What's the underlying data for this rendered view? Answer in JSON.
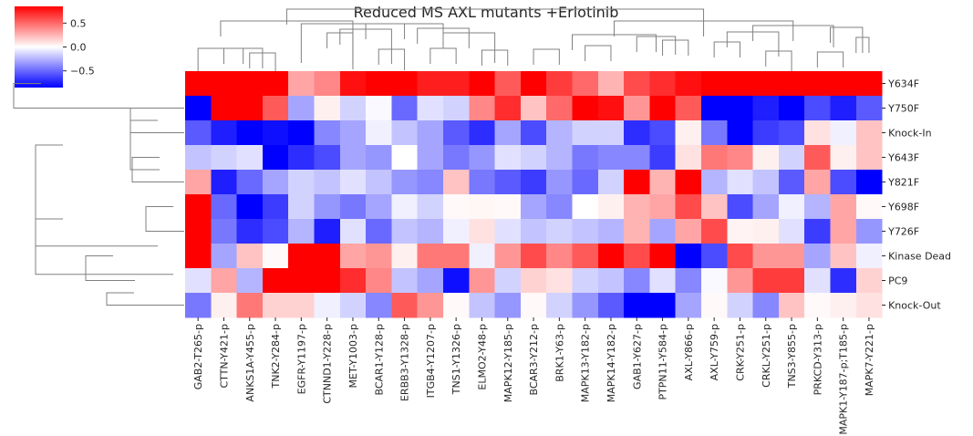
{
  "chart_data": {
    "type": "heatmap",
    "title": "Reduced MS AXL mutants +Erlotinib",
    "columns": [
      "GAB2-T265-p",
      "CTTN-Y421-p",
      "ANKS1A-Y455-p",
      "TNK2-Y284-p",
      "EGFR-Y1197-p",
      "CTNND1-Y228-p",
      "MET-Y1003-p",
      "BCAR1-Y128-p",
      "ERBB3-Y1328-p",
      "ITGB4-Y1207-p",
      "TNS1-Y1326-p",
      "ELMO2-Y48-p",
      "MAPK12-Y185-p",
      "BCAR3-Y212-p",
      "BRK1-Y63-p",
      "MAPK13-Y182-p",
      "MAPK14-Y182-p",
      "GAB1-Y627-p",
      "PTPN11-Y584-p",
      "AXL-Y866-p",
      "AXL-Y759-p",
      "CRK-Y251-p",
      "CRKL-Y251-p",
      "TNS3-Y855-p",
      "PRKCD-Y313-p",
      "MAPK1-Y187-p;T185-p",
      "MAPK7-Y221-p"
    ],
    "rows": [
      "Y634F",
      "Y750F",
      "Knock-In",
      "Y643F",
      "Y821F",
      "Y698F",
      "Y726F",
      "Kinase Dead",
      "PC9",
      "Knock-Out"
    ],
    "values": [
      [
        0.85,
        0.85,
        0.85,
        0.85,
        0.3,
        0.4,
        0.8,
        0.85,
        0.85,
        0.75,
        0.75,
        0.85,
        0.55,
        0.85,
        0.65,
        0.5,
        0.25,
        0.6,
        0.7,
        0.8,
        0.85,
        0.85,
        0.85,
        0.85,
        0.85,
        0.85,
        0.85
      ],
      [
        -0.85,
        0.85,
        0.85,
        0.55,
        -0.3,
        0.05,
        -0.15,
        -0.02,
        -0.5,
        -0.1,
        -0.15,
        0.4,
        0.7,
        0.2,
        0.5,
        0.85,
        0.8,
        0.35,
        0.85,
        0.55,
        -0.85,
        -0.85,
        -0.75,
        -0.85,
        -0.6,
        -0.75,
        -0.55
      ],
      [
        -0.55,
        -0.75,
        -0.85,
        -0.8,
        -0.85,
        -0.4,
        -0.3,
        -0.05,
        -0.2,
        -0.3,
        -0.55,
        -0.7,
        -0.3,
        -0.6,
        -0.25,
        -0.15,
        -0.15,
        -0.7,
        -0.6,
        0.05,
        -0.45,
        -0.85,
        -0.65,
        -0.6,
        0.1,
        -0.05,
        0.2
      ],
      [
        -0.2,
        -0.15,
        -0.1,
        -0.85,
        -0.7,
        -0.6,
        -0.3,
        -0.35,
        0.0,
        -0.3,
        -0.45,
        -0.35,
        -0.1,
        -0.15,
        -0.25,
        -0.45,
        -0.4,
        -0.4,
        -0.65,
        0.1,
        0.45,
        0.4,
        0.05,
        -0.15,
        0.55,
        0.05,
        0.2
      ],
      [
        0.3,
        -0.75,
        -0.5,
        -0.3,
        -0.15,
        -0.2,
        -0.1,
        -0.2,
        -0.35,
        -0.4,
        0.2,
        -0.45,
        -0.55,
        -0.65,
        -0.35,
        -0.5,
        -0.15,
        0.85,
        0.25,
        0.85,
        -0.25,
        -0.1,
        -0.2,
        -0.55,
        0.3,
        -0.6,
        -0.85
      ],
      [
        0.85,
        -0.5,
        -0.85,
        -0.65,
        -0.15,
        -0.35,
        -0.45,
        -0.3,
        -0.05,
        -0.15,
        0.02,
        0.03,
        0.02,
        -0.3,
        -0.4,
        0.0,
        0.05,
        0.25,
        0.3,
        0.6,
        0.2,
        -0.6,
        -0.3,
        -0.05,
        -0.25,
        0.3,
        0.02
      ],
      [
        0.85,
        -0.45,
        -0.7,
        -0.6,
        -0.25,
        -0.75,
        -0.1,
        -0.5,
        -0.2,
        -0.25,
        -0.05,
        0.1,
        -0.1,
        -0.2,
        -0.15,
        -0.2,
        -0.25,
        0.25,
        -0.3,
        0.3,
        0.6,
        0.04,
        0.05,
        -0.1,
        -0.65,
        0.3,
        -0.35
      ],
      [
        0.85,
        -0.3,
        0.2,
        0.02,
        0.85,
        0.85,
        0.3,
        0.35,
        0.05,
        0.45,
        0.45,
        -0.05,
        0.35,
        0.6,
        0.4,
        0.55,
        0.85,
        0.6,
        0.85,
        -0.85,
        -0.6,
        0.6,
        0.35,
        0.35,
        -0.3,
        0.2,
        -0.05
      ],
      [
        -0.1,
        0.3,
        -0.25,
        0.85,
        0.85,
        0.85,
        0.7,
        0.4,
        -0.2,
        -0.3,
        -0.8,
        0.35,
        -0.15,
        0.15,
        0.1,
        -0.15,
        -0.2,
        -0.4,
        -0.1,
        -0.4,
        -0.02,
        0.35,
        0.65,
        0.65,
        -0.1,
        -0.7,
        0.15
      ],
      [
        -0.45,
        0.05,
        0.45,
        0.15,
        0.15,
        -0.05,
        -0.15,
        -0.4,
        0.55,
        0.35,
        0.02,
        -0.2,
        -0.35,
        0.02,
        -0.15,
        -0.35,
        -0.55,
        -0.85,
        -0.85,
        -0.3,
        0.02,
        -0.15,
        -0.4,
        0.2,
        0.02,
        0.05,
        0.1
      ]
    ],
    "colorbar": {
      "ticks": [
        0.5,
        0.0,
        -0.5
      ],
      "tick_labels": [
        "0.5",
        "0.0",
        "−0.5"
      ],
      "range": [
        -0.85,
        0.85
      ],
      "colormap": "bwr"
    }
  }
}
